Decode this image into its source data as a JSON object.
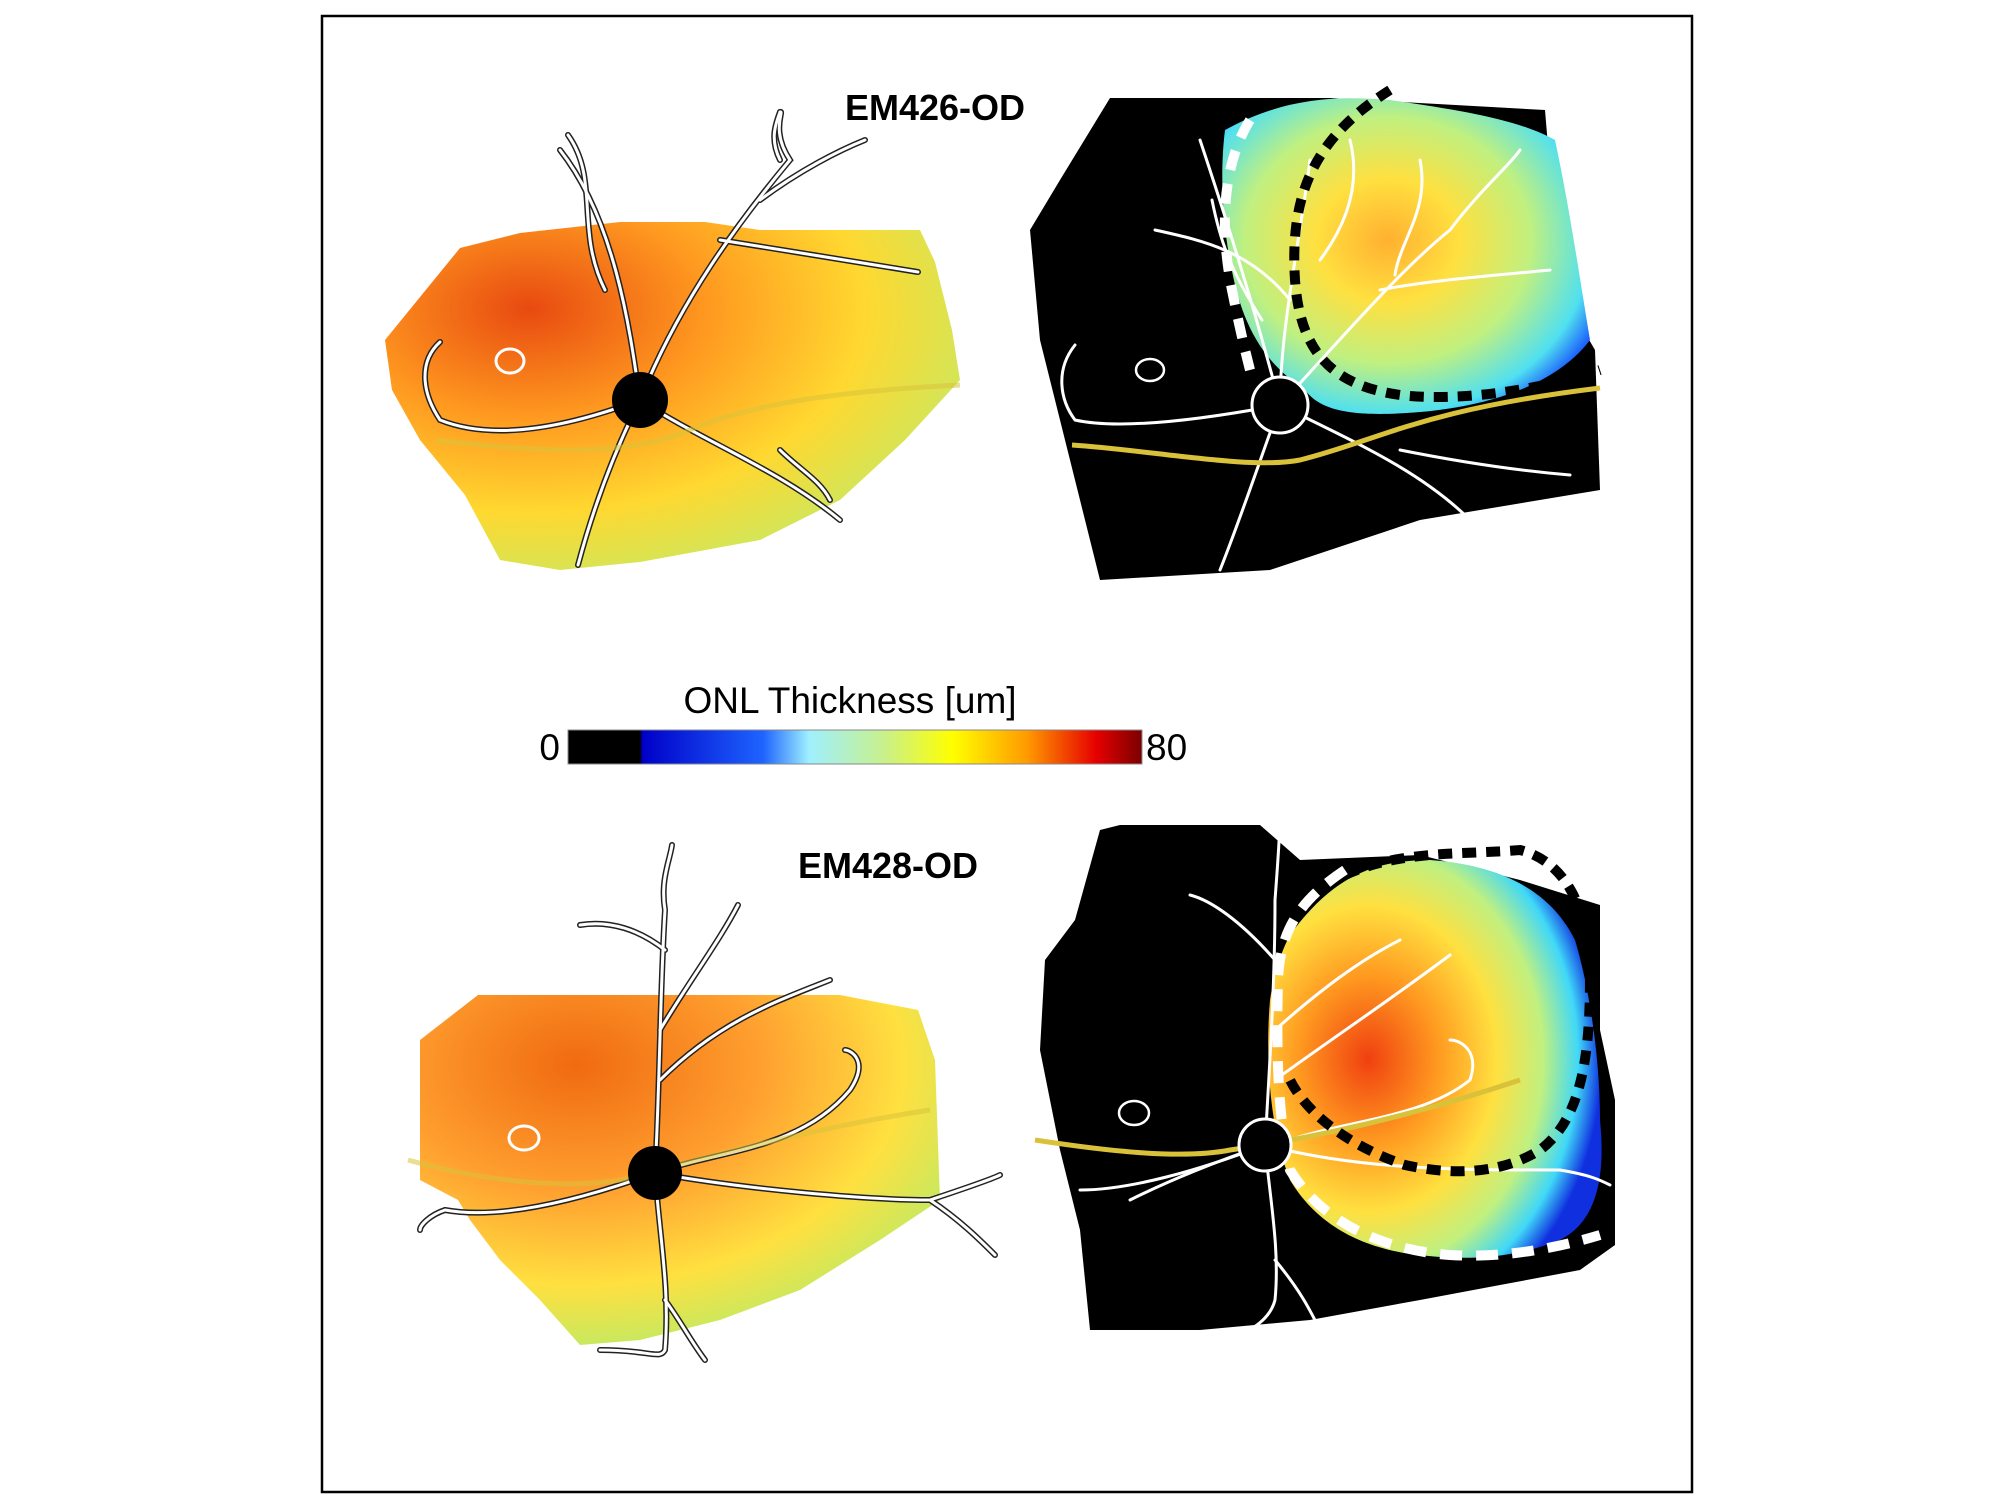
{
  "figure": {
    "panels": [
      {
        "label": "EM426-OD"
      },
      {
        "label": "EM428-OD"
      }
    ]
  },
  "colorbar": {
    "title": "ONL Thickness [um]",
    "min_label": "0",
    "max_label": "80",
    "stops": [
      "#000000",
      "#000000",
      "#0000c8",
      "#1e64ff",
      "#9ff0ff",
      "#c8f08c",
      "#ffff00",
      "#ff9a00",
      "#e60000",
      "#7a0000"
    ]
  },
  "colors": {
    "frame": "#000000",
    "background": "#ffffff",
    "vessel": "#ffffff",
    "vessel_outline": "#222222",
    "guide_line": "#d9c23a",
    "optic_disc": "#000000"
  }
}
